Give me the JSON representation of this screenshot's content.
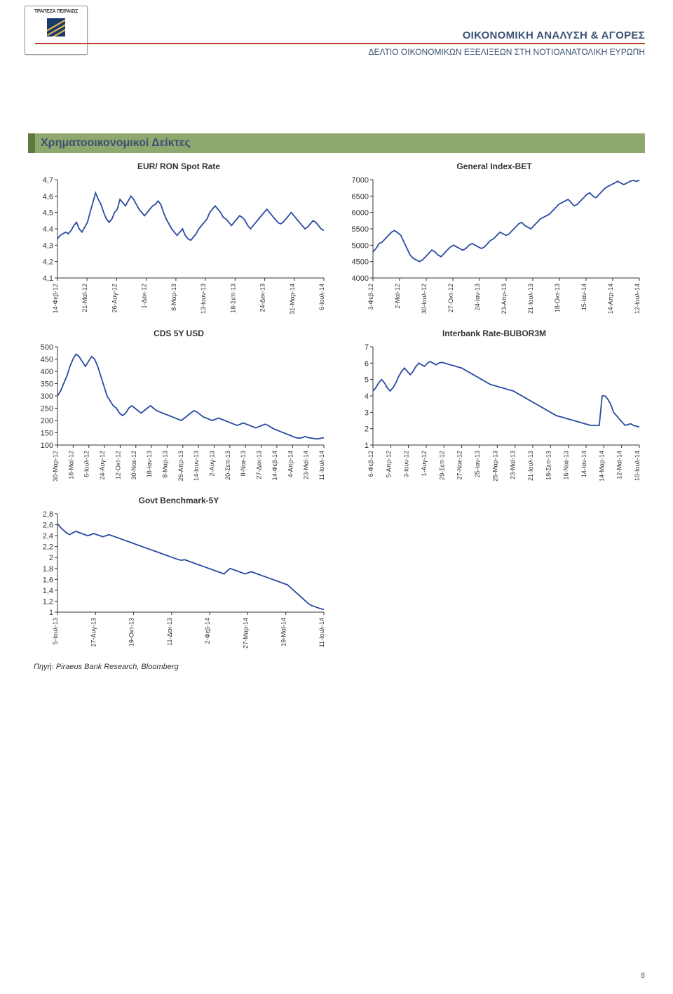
{
  "header": {
    "logo_text": "ΤΡΑΠΕΖΑ ΠΕΙΡΑΙΩΣ",
    "title": "ΟΙΚΟΝΟΜΙΚΗ ΑΝΑΛΥΣΗ & ΑΓΟΡΕΣ",
    "subtitle": "ΔΕΛΤΙΟ ΟΙΚΟΝΟΜΙΚΩΝ ΕΞΕΛΙΞΕΩΝ ΣΤΗ ΝΟΤΙΟΑΝΑΤΟΛΙΚΗ ΕΥΡΩΠΗ"
  },
  "section": {
    "title": "Χρηματοοικονομικοί Δείκτες"
  },
  "colors": {
    "line": "#2a4aa0",
    "axis": "#333333",
    "rule": "#c04030",
    "section_bar": "#8fa870",
    "section_border": "#5b7a3f",
    "hdr_text": "#3b5173"
  },
  "charts": {
    "eur_ron": {
      "title": "EUR/ RON Spot Rate",
      "type": "line",
      "ylim": [
        4.1,
        4.7
      ],
      "ytick_step": 0.1,
      "y_labels": [
        "4,1",
        "4,2",
        "4,3",
        "4,4",
        "4,5",
        "4,6",
        "4,7"
      ],
      "x_labels": [
        "14-Φεβ-12",
        "21-Μαϊ-12",
        "26-Αυγ-12",
        "1-Δεκ-12",
        "8-Μαρ-13",
        "13-Ιουν-13",
        "18-Σεπ-13",
        "24-Δεκ-13",
        "31-Μαρ-14",
        "6-Ιουλ-14"
      ],
      "values": [
        4.34,
        4.36,
        4.37,
        4.38,
        4.37,
        4.39,
        4.42,
        4.44,
        4.4,
        4.38,
        4.41,
        4.44,
        4.5,
        4.56,
        4.62,
        4.58,
        4.55,
        4.5,
        4.46,
        4.44,
        4.46,
        4.5,
        4.52,
        4.58,
        4.56,
        4.54,
        4.57,
        4.6,
        4.58,
        4.55,
        4.52,
        4.5,
        4.48,
        4.5,
        4.52,
        4.54,
        4.55,
        4.57,
        4.55,
        4.5,
        4.46,
        4.43,
        4.4,
        4.38,
        4.36,
        4.38,
        4.4,
        4.36,
        4.34,
        4.33,
        4.35,
        4.37,
        4.4,
        4.42,
        4.44,
        4.46,
        4.5,
        4.52,
        4.54,
        4.52,
        4.5,
        4.47,
        4.46,
        4.44,
        4.42,
        4.44,
        4.46,
        4.48,
        4.47,
        4.45,
        4.42,
        4.4,
        4.42,
        4.44,
        4.46,
        4.48,
        4.5,
        4.52,
        4.5,
        4.48,
        4.46,
        4.44,
        4.43,
        4.44,
        4.46,
        4.48,
        4.5,
        4.48,
        4.46,
        4.44,
        4.42,
        4.4,
        4.41,
        4.43,
        4.45,
        4.44,
        4.42,
        4.4,
        4.39
      ]
    },
    "general_index": {
      "title": "General Index-BET",
      "type": "line",
      "ylim": [
        4000,
        7000
      ],
      "ytick_step": 500,
      "y_labels": [
        "4000",
        "4500",
        "5000",
        "5500",
        "6000",
        "6500",
        "7000"
      ],
      "x_labels": [
        "3-Φεβ-12",
        "2-Μαϊ-12",
        "30-Ιουλ-12",
        "27-Οκτ-12",
        "24-Ιαν-13",
        "23-Απρ-13",
        "21-Ιουλ-13",
        "18-Οκτ-13",
        "15-Ιαν-14",
        "14-Απρ-14",
        "12-Ιουλ-14"
      ],
      "values": [
        4800,
        4900,
        5050,
        5100,
        5200,
        5300,
        5400,
        5450,
        5380,
        5300,
        5100,
        4900,
        4700,
        4600,
        4550,
        4500,
        4550,
        4650,
        4750,
        4850,
        4800,
        4700,
        4650,
        4750,
        4850,
        4950,
        5000,
        4950,
        4900,
        4850,
        4900,
        5000,
        5050,
        5000,
        4950,
        4900,
        4950,
        5050,
        5150,
        5200,
        5300,
        5400,
        5350,
        5300,
        5350,
        5450,
        5550,
        5650,
        5700,
        5600,
        5550,
        5500,
        5600,
        5700,
        5800,
        5850,
        5900,
        5950,
        6050,
        6150,
        6250,
        6300,
        6350,
        6400,
        6300,
        6200,
        6250,
        6350,
        6450,
        6550,
        6600,
        6500,
        6450,
        6550,
        6650,
        6750,
        6800,
        6850,
        6900,
        6950,
        6900,
        6850,
        6900,
        6950,
        6980,
        6950,
        6980
      ]
    },
    "cds": {
      "title": "CDS 5Y USD",
      "type": "line",
      "ylim": [
        100,
        500
      ],
      "ytick_step": 50,
      "y_labels": [
        "100",
        "150",
        "200",
        "250",
        "300",
        "350",
        "400",
        "450",
        "500"
      ],
      "x_labels": [
        "30-Μαρ-12",
        "18-Μαϊ-12",
        "6-Ιουλ-12",
        "24-Αυγ-12",
        "12-Οκτ-12",
        "30-Νοε-12",
        "18-Ιαν-13",
        "8-Μαρ-13",
        "26-Απρ-13",
        "14-Ιουν-13",
        "2-Αυγ-13",
        "20-Σεπ-13",
        "8-Νοε-13",
        "27-Δεκ-13",
        "14-Φεβ-14",
        "4-Απρ-14",
        "23-Μαϊ-14",
        "11-Ιουλ-14"
      ],
      "values": [
        300,
        320,
        350,
        380,
        420,
        450,
        470,
        460,
        440,
        420,
        440,
        460,
        450,
        420,
        380,
        340,
        300,
        280,
        260,
        250,
        230,
        220,
        230,
        250,
        260,
        250,
        240,
        230,
        240,
        250,
        260,
        250,
        240,
        235,
        230,
        225,
        220,
        215,
        210,
        205,
        200,
        210,
        220,
        230,
        240,
        235,
        225,
        215,
        210,
        205,
        200,
        205,
        210,
        205,
        200,
        195,
        190,
        185,
        180,
        185,
        190,
        185,
        180,
        175,
        170,
        175,
        180,
        185,
        180,
        172,
        165,
        160,
        155,
        150,
        145,
        140,
        135,
        130,
        128,
        130,
        135,
        130,
        128,
        126,
        125,
        128,
        130
      ]
    },
    "interbank": {
      "title": "Interbank Rate-BUBOR3M",
      "type": "line",
      "ylim": [
        1,
        7
      ],
      "ytick_step": 1,
      "y_labels": [
        "1",
        "2",
        "3",
        "4",
        "5",
        "6",
        "7"
      ],
      "x_labels": [
        "6-Φεβ-12",
        "5-Απρ-12",
        "3-Ιουν-12",
        "1-Αυγ-12",
        "29-Σεπ-12",
        "27-Νοε-12",
        "25-Ιαν-13",
        "25-Μαρ-13",
        "23-Μαϊ-13",
        "21-Ιουλ-13",
        "18-Σεπ-13",
        "16-Νοε-13",
        "14-Ιαν-14",
        "14-Μαρ-14",
        "12-Μαϊ-14",
        "10-Ιουλ-14"
      ],
      "values": [
        4.3,
        4.5,
        4.8,
        5.0,
        4.8,
        4.5,
        4.3,
        4.5,
        4.8,
        5.2,
        5.5,
        5.7,
        5.5,
        5.3,
        5.5,
        5.8,
        6.0,
        5.9,
        5.8,
        6.0,
        6.1,
        6.0,
        5.9,
        6.0,
        6.05,
        6.0,
        5.95,
        5.9,
        5.85,
        5.8,
        5.75,
        5.7,
        5.6,
        5.5,
        5.4,
        5.3,
        5.2,
        5.1,
        5.0,
        4.9,
        4.8,
        4.7,
        4.65,
        4.6,
        4.55,
        4.5,
        4.45,
        4.4,
        4.35,
        4.3,
        4.2,
        4.1,
        4.0,
        3.9,
        3.8,
        3.7,
        3.6,
        3.5,
        3.4,
        3.3,
        3.2,
        3.1,
        3.0,
        2.9,
        2.8,
        2.75,
        2.7,
        2.65,
        2.6,
        2.55,
        2.5,
        2.45,
        2.4,
        2.35,
        2.3,
        2.25,
        2.2,
        2.2,
        2.2,
        2.2,
        4.0,
        4.0,
        3.8,
        3.5,
        3.0,
        2.8,
        2.6,
        2.4,
        2.2,
        2.25,
        2.3,
        2.2,
        2.15,
        2.1
      ]
    },
    "govt": {
      "title": "Govt Benchmark-5Y",
      "type": "line",
      "ylim": [
        1,
        2.8
      ],
      "ytick_step": 0.2,
      "y_labels": [
        "1",
        "1,2",
        "1,4",
        "1,6",
        "1,8",
        "2",
        "2,2",
        "2,4",
        "2,6",
        "2,8"
      ],
      "x_labels": [
        "5-Ιουλ-13",
        "27-Αυγ-13",
        "19-Οκτ-13",
        "11-Δεκ-13",
        "2-Φεβ-14",
        "27-Μαρ-14",
        "19-Μαϊ-14",
        "11-Ιουλ-14"
      ],
      "values": [
        2.62,
        2.55,
        2.5,
        2.45,
        2.42,
        2.45,
        2.48,
        2.46,
        2.44,
        2.42,
        2.4,
        2.42,
        2.44,
        2.42,
        2.4,
        2.38,
        2.4,
        2.42,
        2.4,
        2.38,
        2.36,
        2.34,
        2.32,
        2.3,
        2.28,
        2.26,
        2.24,
        2.22,
        2.2,
        2.18,
        2.16,
        2.14,
        2.12,
        2.1,
        2.08,
        2.06,
        2.04,
        2.02,
        2.0,
        1.98,
        1.96,
        1.95,
        1.96,
        1.94,
        1.92,
        1.9,
        1.88,
        1.86,
        1.84,
        1.82,
        1.8,
        1.78,
        1.76,
        1.74,
        1.72,
        1.7,
        1.75,
        1.8,
        1.78,
        1.76,
        1.74,
        1.72,
        1.7,
        1.72,
        1.74,
        1.72,
        1.7,
        1.68,
        1.66,
        1.64,
        1.62,
        1.6,
        1.58,
        1.56,
        1.54,
        1.52,
        1.5,
        1.45,
        1.4,
        1.35,
        1.3,
        1.25,
        1.2,
        1.15,
        1.12,
        1.1,
        1.08,
        1.06,
        1.05
      ]
    }
  },
  "source": "Πηγή: Piraeus Bank Research, Bloomberg",
  "page_number": "8"
}
